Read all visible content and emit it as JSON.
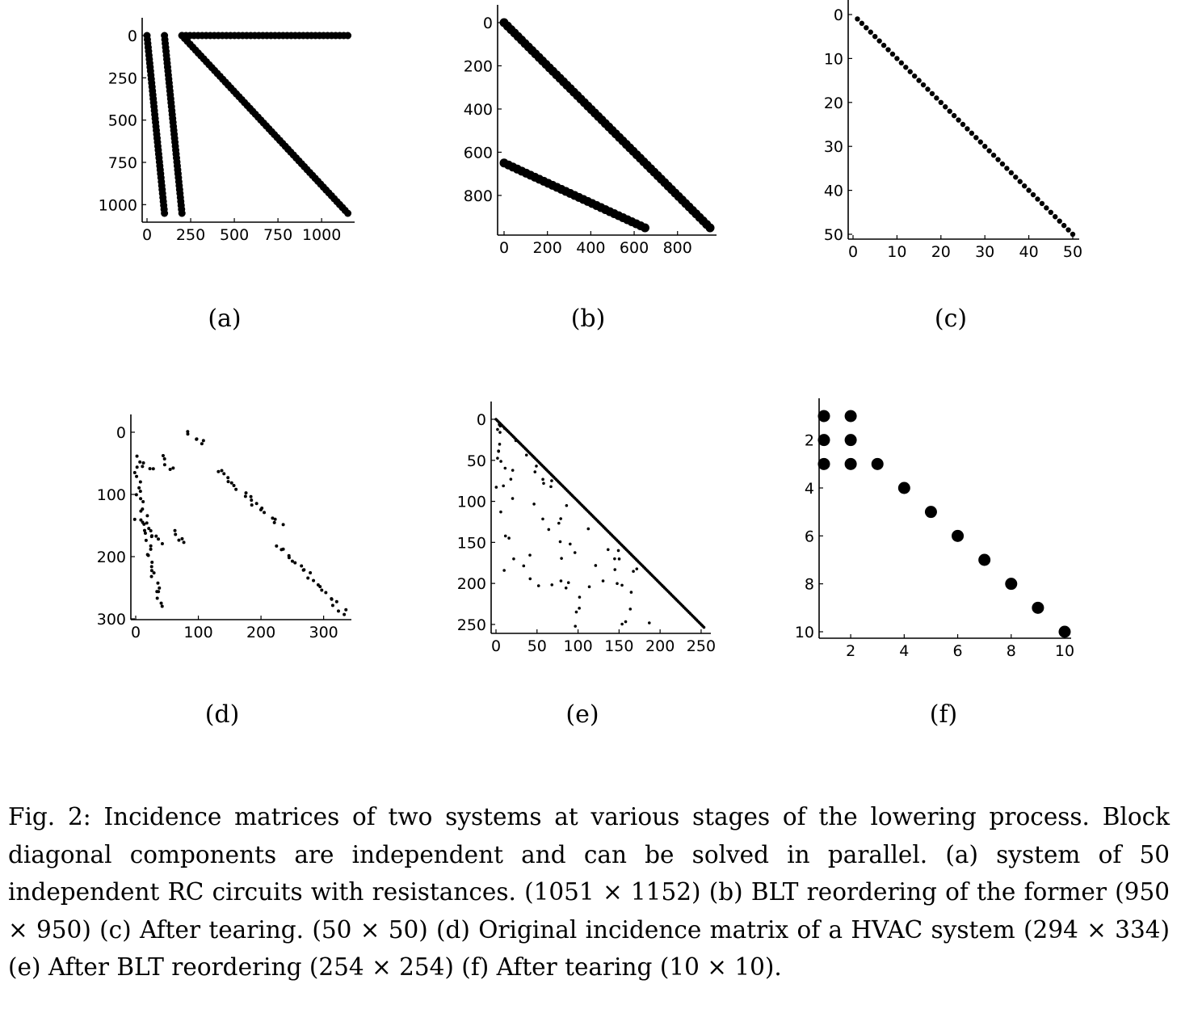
{
  "figure": {
    "panels": [
      {
        "label": "(a)"
      },
      {
        "label": "(b)"
      },
      {
        "label": "(c)"
      },
      {
        "label": "(d)"
      },
      {
        "label": "(e)"
      },
      {
        "label": "(f)"
      }
    ],
    "caption": "Fig. 2: Incidence matrices of two systems at various stages of the lowering process. Block diagonal components are independent and can be solved in parallel. (a) system of 50 independent RC circuits with resistances. (1051 × 1152) (b) BLT reordering of the former (950 × 950) (c) After tearing. (50 × 50) (d) Original incidence matrix of a HVAC system (294 × 334) (e) After BLT reordering (254 × 254) (f) After tearing (10 × 10)."
  },
  "chart_data": [
    {
      "type": "scatter",
      "subtype": "sparsity-pattern",
      "xlim": [
        0,
        1152
      ],
      "ylim": [
        1051,
        0
      ],
      "xticks": [
        0,
        250,
        500,
        750,
        1000
      ],
      "yticks": [
        0,
        250,
        500,
        750,
        1000
      ],
      "segments": [
        {
          "from": [
            0,
            0
          ],
          "to": [
            100,
            1051
          ]
        },
        {
          "from": [
            100,
            0
          ],
          "to": [
            200,
            1051
          ]
        },
        {
          "from": [
            200,
            0
          ],
          "to": [
            1150,
            1051
          ]
        },
        {
          "from": [
            200,
            0
          ],
          "to": [
            1150,
            0
          ]
        }
      ]
    },
    {
      "type": "scatter",
      "subtype": "sparsity-pattern",
      "xlim": [
        0,
        950
      ],
      "ylim": [
        950,
        0
      ],
      "xticks": [
        0,
        200,
        400,
        600,
        800
      ],
      "yticks": [
        0,
        200,
        400,
        600,
        800
      ],
      "segments": [
        {
          "from": [
            0,
            0
          ],
          "to": [
            950,
            950
          ]
        },
        {
          "from": [
            0,
            650
          ],
          "to": [
            650,
            950
          ]
        }
      ]
    },
    {
      "type": "scatter",
      "subtype": "sparsity-pattern",
      "xlim": [
        0,
        50
      ],
      "ylim": [
        50,
        0
      ],
      "xticks": [
        0,
        10,
        20,
        30,
        40,
        50
      ],
      "yticks": [
        0,
        10,
        20,
        30,
        40,
        50
      ],
      "diagonal": {
        "from": 1,
        "to": 50
      }
    },
    {
      "type": "scatter",
      "subtype": "sparsity-pattern",
      "xlim": [
        0,
        334
      ],
      "ylim": [
        300,
        0
      ],
      "xticks": [
        0,
        100,
        200,
        300
      ],
      "yticks": [
        0,
        100,
        200,
        300
      ],
      "segments": [
        {
          "from": [
            0,
            40
          ],
          "to": [
            25,
            60
          ]
        },
        {
          "from": [
            40,
            40
          ],
          "to": [
            60,
            60
          ]
        },
        {
          "from": [
            80,
            0
          ],
          "to": [
            110,
            20
          ]
        },
        {
          "from": [
            0,
            140
          ],
          "to": [
            40,
            180
          ]
        },
        {
          "from": [
            60,
            160
          ],
          "to": [
            80,
            180
          ]
        },
        {
          "from": [
            0,
            60
          ],
          "to": [
            40,
            280
          ]
        },
        {
          "from": [
            130,
            60
          ],
          "to": [
            230,
            150
          ]
        },
        {
          "from": [
            230,
            180
          ],
          "to": [
            334,
            294
          ]
        }
      ]
    },
    {
      "type": "scatter",
      "subtype": "sparsity-pattern",
      "xlim": [
        0,
        254
      ],
      "ylim": [
        254,
        0
      ],
      "xticks": [
        0,
        50,
        100,
        150,
        200,
        250
      ],
      "yticks": [
        0,
        50,
        100,
        150,
        200,
        250
      ],
      "diagonal": {
        "from": 0,
        "to": 254
      }
    },
    {
      "type": "scatter",
      "subtype": "sparsity-pattern",
      "xlim": [
        1,
        10
      ],
      "ylim": [
        10,
        1
      ],
      "xticks": [
        2,
        4,
        6,
        8,
        10
      ],
      "yticks": [
        2,
        4,
        6,
        8,
        10
      ],
      "points": [
        [
          1,
          1
        ],
        [
          2,
          1
        ],
        [
          1,
          2
        ],
        [
          2,
          2
        ],
        [
          1,
          3
        ],
        [
          2,
          3
        ],
        [
          3,
          3
        ],
        [
          4,
          4
        ],
        [
          5,
          5
        ],
        [
          6,
          6
        ],
        [
          7,
          7
        ],
        [
          8,
          8
        ],
        [
          9,
          9
        ],
        [
          10,
          10
        ]
      ]
    }
  ]
}
